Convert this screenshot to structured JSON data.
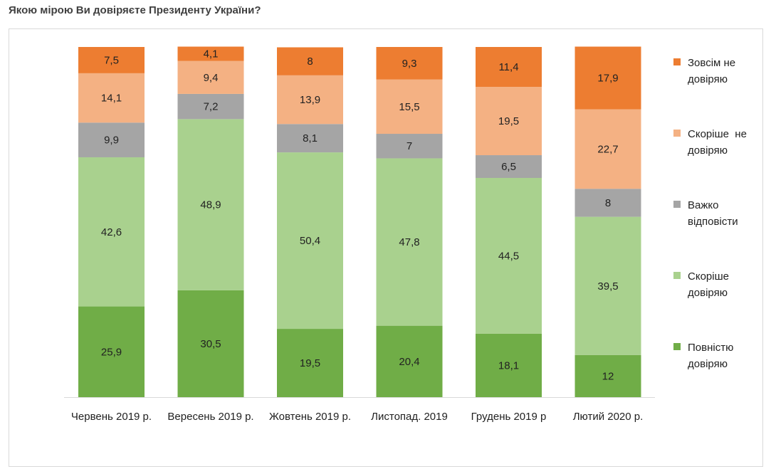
{
  "chart_data": {
    "type": "bar",
    "stacked": true,
    "title": "Якою мірою Ви довіряєте Президенту України?",
    "categories": [
      "Червень 2019 р.",
      "Вересень 2019 р.",
      "Жовтень 2019 р.",
      "Листопад. 2019",
      "Грудень 2019 р",
      "Лютий 2020 р."
    ],
    "series": [
      {
        "name": "Повністю довіряю",
        "color": "#70ad47",
        "values": [
          25.9,
          30.5,
          19.5,
          20.4,
          18.1,
          12
        ]
      },
      {
        "name": "Скоріше довіряю",
        "color": "#a9d18e",
        "values": [
          42.6,
          48.9,
          50.4,
          47.8,
          44.5,
          39.5
        ]
      },
      {
        "name": "Важко відповісти",
        "color": "#a5a5a5",
        "values": [
          9.9,
          7.2,
          8.1,
          7,
          6.5,
          8
        ]
      },
      {
        "name": "Скоріше  не довіряю",
        "color": "#f4b183",
        "values": [
          14.1,
          9.4,
          13.9,
          15.5,
          19.5,
          22.7
        ]
      },
      {
        "name": "Зовсім не довіряю",
        "color": "#ed7d31",
        "values": [
          7.5,
          4.1,
          8,
          9.3,
          11.4,
          17.9
        ]
      }
    ],
    "ylim": [
      0,
      100
    ],
    "grid": false,
    "legend_position": "right"
  }
}
